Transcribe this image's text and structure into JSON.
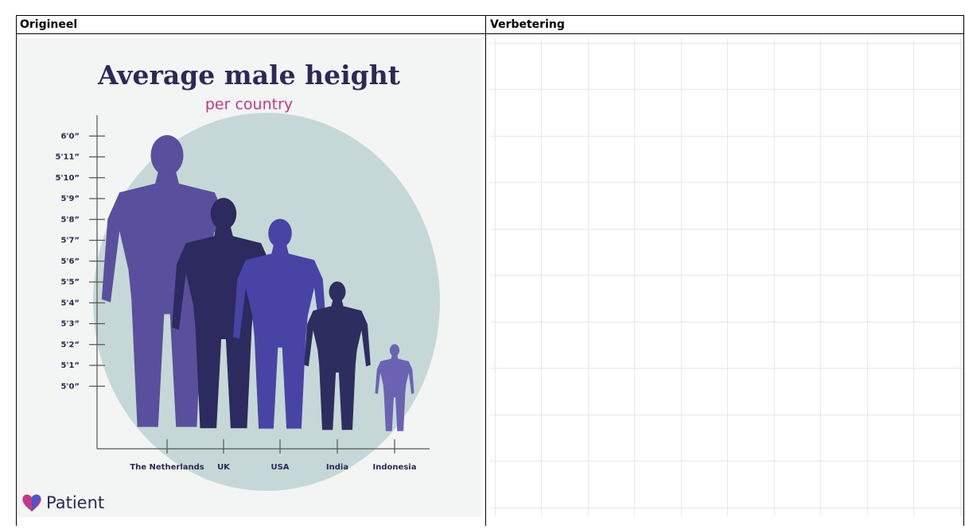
{
  "table": {
    "headers": [
      "Origineel",
      "Verbetering"
    ]
  },
  "chart_data": {
    "type": "pictogram",
    "title": "Average male height",
    "subtitle": "per country",
    "categories": [
      "The Netherlands",
      "UK",
      "USA",
      "India",
      "Indonesia"
    ],
    "values": [
      72,
      69,
      68,
      65,
      62
    ],
    "colors": [
      "#5a4f9c",
      "#2c2a5e",
      "#4744a6",
      "#2e2d5f",
      "#6b63b2"
    ],
    "ylim": [
      57,
      73
    ],
    "yticks": [
      {
        "value": 72,
        "label": "6'0”"
      },
      {
        "value": 71,
        "label": "5'11”"
      },
      {
        "value": 70,
        "label": "5'10”"
      },
      {
        "value": 69,
        "label": "5'9”"
      },
      {
        "value": 68,
        "label": "5'8”"
      },
      {
        "value": 67,
        "label": "5'7”"
      },
      {
        "value": 66,
        "label": "5'6”"
      },
      {
        "value": 65,
        "label": "5'5”"
      },
      {
        "value": 64,
        "label": "5'4”"
      },
      {
        "value": 63,
        "label": "5'3”"
      },
      {
        "value": 62,
        "label": "5'2”"
      },
      {
        "value": 61,
        "label": "5'1”"
      },
      {
        "value": 60,
        "label": "5'0”"
      }
    ],
    "brand": "Patient"
  }
}
